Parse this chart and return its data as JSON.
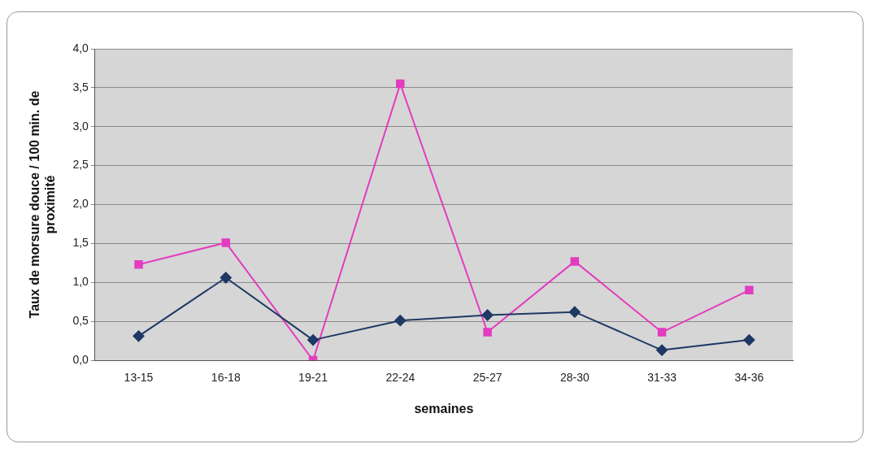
{
  "chart_data": {
    "type": "line",
    "xlabel": "semaines",
    "ylabel": "Taux de morsure douce / 100 min. de proximité",
    "categories": [
      "13-15",
      "16-18",
      "19-21",
      "22-24",
      "25-27",
      "28-30",
      "31-33",
      "34-36"
    ],
    "series": [
      {
        "color": "#1f3864",
        "marker": "diamond",
        "values": [
          0.31,
          1.06,
          0.26,
          0.51,
          0.58,
          0.62,
          0.13,
          0.26
        ]
      },
      {
        "color": "#e33cc0",
        "marker": "square",
        "values": [
          1.23,
          1.51,
          0,
          3.55,
          0.36,
          1.27,
          0.36,
          0.9
        ]
      }
    ],
    "ylim": [
      0,
      4
    ],
    "yticks": [
      {
        "value": 0,
        "label": "0,0"
      },
      {
        "value": 0.5,
        "label": "0,5"
      },
      {
        "value": 1,
        "label": "1,0"
      },
      {
        "value": 1.5,
        "label": "1,5"
      },
      {
        "value": 2,
        "label": "2,0"
      },
      {
        "value": 2.5,
        "label": "2,5"
      },
      {
        "value": 3,
        "label": "3,0"
      },
      {
        "value": 3.5,
        "label": "3,5"
      },
      {
        "value": 4,
        "label": "4,0"
      }
    ],
    "grid": "y",
    "legend": false,
    "line_style": "solid"
  }
}
